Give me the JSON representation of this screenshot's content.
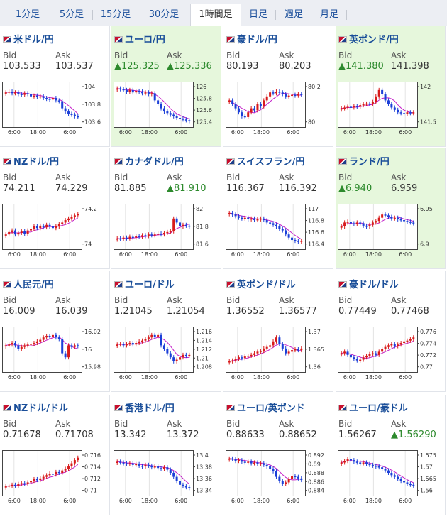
{
  "tabs": [
    "1分足",
    "5分足",
    "15分足",
    "30分足",
    "1時間足",
    "日足",
    "週足",
    "月足"
  ],
  "active_tab": 4,
  "colors": {
    "up": "#d81b1b",
    "down": "#1b3fd8",
    "ma": "#c41ec9",
    "uptext": "#2d8a2d",
    "highlight": "#e6f7dc"
  },
  "labels": {
    "bid": "Bid",
    "ask": "Ask"
  },
  "pairs": [
    {
      "name": "米ドル/円",
      "bid": "103.533",
      "ask": "103.537",
      "bid_up": false,
      "ask_up": false,
      "hl": false,
      "y_ticks": [
        "104",
        "103.8",
        "103.6"
      ],
      "x_ticks": [
        "6:00",
        "18:00",
        "6:00"
      ],
      "flag_icon": "us-jp-flag-icon",
      "series": [
        0.8,
        0.82,
        0.78,
        0.8,
        0.76,
        0.74,
        0.78,
        0.76,
        0.7,
        0.72,
        0.68,
        0.7,
        0.66,
        0.64,
        0.62,
        0.66,
        0.6,
        0.58,
        0.4,
        0.32,
        0.26,
        0.24,
        0.2,
        0.18
      ]
    },
    {
      "name": "ユーロ/円",
      "bid": "▲125.325",
      "ask": "▲125.336",
      "bid_up": true,
      "ask_up": true,
      "hl": true,
      "y_ticks": [
        "126",
        "125.8",
        "125.6",
        "125.4"
      ],
      "x_ticks": [
        "6:00",
        "18:00",
        "6:00"
      ],
      "flag_icon": "eu-jp-flag-icon",
      "series": [
        0.9,
        0.88,
        0.86,
        0.82,
        0.86,
        0.8,
        0.84,
        0.82,
        0.78,
        0.8,
        0.76,
        0.78,
        0.6,
        0.5,
        0.4,
        0.32,
        0.28,
        0.24,
        0.2,
        0.16,
        0.14,
        0.12,
        0.1,
        0.08
      ]
    },
    {
      "name": "豪ドル/円",
      "bid": "80.193",
      "ask": "80.203",
      "bid_up": false,
      "ask_up": false,
      "hl": false,
      "y_ticks": [
        "80.2",
        "80"
      ],
      "x_ticks": [
        "6:00",
        "18:00",
        "6:00"
      ],
      "flag_icon": "au-jp-flag-icon",
      "series": [
        0.6,
        0.5,
        0.4,
        0.3,
        0.2,
        0.18,
        0.3,
        0.4,
        0.35,
        0.5,
        0.45,
        0.6,
        0.7,
        0.8,
        0.78,
        0.82,
        0.8,
        0.76,
        0.7,
        0.72,
        0.74,
        0.72,
        0.76,
        0.74
      ]
    },
    {
      "name": "英ポンド/円",
      "bid": "▲141.380",
      "ask": "141.398",
      "bid_up": true,
      "ask_up": false,
      "hl": true,
      "y_ticks": [
        "142",
        "141.5"
      ],
      "x_ticks": [
        "6:00",
        "18:00",
        "6:00"
      ],
      "flag_icon": "uk-jp-flag-icon",
      "series": [
        0.4,
        0.42,
        0.44,
        0.42,
        0.46,
        0.44,
        0.48,
        0.5,
        0.52,
        0.5,
        0.56,
        0.7,
        0.86,
        0.76,
        0.6,
        0.5,
        0.42,
        0.36,
        0.3,
        0.28,
        0.26,
        0.3,
        0.28,
        0.3
      ]
    },
    {
      "name": "NZドル/円",
      "bid": "74.211",
      "ask": "74.229",
      "bid_up": false,
      "ask_up": false,
      "hl": false,
      "y_ticks": [
        "74.2",
        "74"
      ],
      "x_ticks": [
        "6:00",
        "18:00",
        "6:00"
      ],
      "flag_icon": "nz-jp-flag-icon",
      "series": [
        0.3,
        0.36,
        0.4,
        0.3,
        0.34,
        0.38,
        0.32,
        0.4,
        0.44,
        0.5,
        0.46,
        0.52,
        0.48,
        0.54,
        0.5,
        0.46,
        0.5,
        0.56,
        0.6,
        0.66,
        0.7,
        0.74,
        0.78,
        0.82
      ]
    },
    {
      "name": "カナダドル/円",
      "bid": "81.885",
      "ask": "▲81.910",
      "bid_up": false,
      "ask_up": true,
      "hl": false,
      "y_ticks": [
        "82",
        "81.8",
        "81.6"
      ],
      "x_ticks": [
        "6:00",
        "18:00",
        "6:00"
      ],
      "flag_icon": "ca-jp-flag-icon",
      "series": [
        0.2,
        0.18,
        0.22,
        0.2,
        0.24,
        0.22,
        0.26,
        0.24,
        0.28,
        0.26,
        0.3,
        0.28,
        0.3,
        0.32,
        0.3,
        0.34,
        0.36,
        0.38,
        0.7,
        0.6,
        0.5,
        0.54,
        0.52,
        0.5
      ]
    },
    {
      "name": "スイスフラン/円",
      "bid": "116.367",
      "ask": "116.392",
      "bid_up": false,
      "ask_up": false,
      "hl": false,
      "y_ticks": [
        "117",
        "116.8",
        "116.6",
        "116.4"
      ],
      "x_ticks": [
        "6:00",
        "18:00",
        "6:00"
      ],
      "flag_icon": "ch-jp-flag-icon",
      "series": [
        0.84,
        0.8,
        0.76,
        0.72,
        0.7,
        0.72,
        0.68,
        0.7,
        0.66,
        0.68,
        0.7,
        0.66,
        0.6,
        0.58,
        0.54,
        0.5,
        0.44,
        0.4,
        0.3,
        0.22,
        0.16,
        0.14,
        0.12,
        0.14
      ]
    },
    {
      "name": "ランド/円",
      "bid": "▲6.940",
      "ask": "6.959",
      "bid_up": true,
      "ask_up": false,
      "hl": true,
      "y_ticks": [
        "6.95",
        "6.9"
      ],
      "x_ticks": [
        "6:00",
        "18:00",
        "6:00"
      ],
      "flag_icon": "za-jp-flag-icon",
      "series": [
        0.5,
        0.6,
        0.62,
        0.58,
        0.56,
        0.6,
        0.58,
        0.52,
        0.5,
        0.54,
        0.6,
        0.64,
        0.72,
        0.8,
        0.78,
        0.74,
        0.7,
        0.72,
        0.68,
        0.66,
        0.64,
        0.62,
        0.6,
        0.58
      ]
    },
    {
      "name": "人民元/円",
      "bid": "16.009",
      "ask": "16.039",
      "bid_up": false,
      "ask_up": false,
      "hl": false,
      "y_ticks": [
        "16.02",
        "16",
        "15.98"
      ],
      "x_ticks": [
        "6:00",
        "18:00",
        "6:00"
      ],
      "flag_icon": "cn-jp-flag-icon",
      "series": [
        0.6,
        0.62,
        0.66,
        0.6,
        0.5,
        0.56,
        0.6,
        0.62,
        0.64,
        0.66,
        0.7,
        0.74,
        0.8,
        0.84,
        0.82,
        0.86,
        0.8,
        0.76,
        0.4,
        0.3,
        0.6,
        0.56,
        0.6,
        0.58
      ]
    },
    {
      "name": "ユーロ/ドル",
      "bid": "1.21045",
      "ask": "1.21054",
      "bid_up": false,
      "ask_up": false,
      "hl": false,
      "y_ticks": [
        "1.216",
        "1.214",
        "1.212",
        "1.21",
        "1.208"
      ],
      "x_ticks": [
        "6:00",
        "18:00",
        "6:00"
      ],
      "flag_icon": "eu-us-flag-icon",
      "series": [
        0.62,
        0.64,
        0.6,
        0.64,
        0.66,
        0.62,
        0.66,
        0.7,
        0.72,
        0.76,
        0.8,
        0.86,
        0.82,
        0.86,
        0.6,
        0.5,
        0.4,
        0.3,
        0.2,
        0.24,
        0.3,
        0.36,
        0.34,
        0.36
      ]
    },
    {
      "name": "英ポンド/ドル",
      "bid": "1.36552",
      "ask": "1.36577",
      "bid_up": false,
      "ask_up": false,
      "hl": false,
      "y_ticks": [
        "1.37",
        "1.365",
        "1.36"
      ],
      "x_ticks": [
        "6:00",
        "18:00",
        "6:00"
      ],
      "flag_icon": "uk-us-flag-icon",
      "series": [
        0.2,
        0.22,
        0.26,
        0.3,
        0.28,
        0.32,
        0.34,
        0.36,
        0.4,
        0.44,
        0.46,
        0.52,
        0.56,
        0.6,
        0.7,
        0.8,
        0.64,
        0.52,
        0.4,
        0.44,
        0.48,
        0.5,
        0.48,
        0.52
      ]
    },
    {
      "name": "豪ドル/ドル",
      "bid": "0.77449",
      "ask": "0.77468",
      "bid_up": false,
      "ask_up": false,
      "hl": false,
      "y_ticks": [
        "0.776",
        "0.774",
        "0.772",
        "0.77"
      ],
      "x_ticks": [
        "6:00",
        "18:00",
        "6:00"
      ],
      "flag_icon": "au-us-flag-icon",
      "series": [
        0.4,
        0.44,
        0.36,
        0.3,
        0.26,
        0.22,
        0.24,
        0.3,
        0.34,
        0.38,
        0.4,
        0.36,
        0.44,
        0.5,
        0.56,
        0.6,
        0.64,
        0.58,
        0.62,
        0.66,
        0.7,
        0.72,
        0.76,
        0.8
      ]
    },
    {
      "name": "NZドル/ドル",
      "bid": "0.71678",
      "ask": "0.71708",
      "bid_up": false,
      "ask_up": false,
      "hl": false,
      "y_ticks": [
        "0.716",
        "0.714",
        "0.712",
        "0.71"
      ],
      "x_ticks": [
        "6:00",
        "18:00",
        "6:00"
      ],
      "flag_icon": "nz-us-flag-icon",
      "series": [
        0.16,
        0.18,
        0.2,
        0.18,
        0.22,
        0.24,
        0.22,
        0.26,
        0.3,
        0.34,
        0.32,
        0.36,
        0.4,
        0.44,
        0.48,
        0.46,
        0.52,
        0.5,
        0.56,
        0.6,
        0.66,
        0.74,
        0.82,
        0.88
      ]
    },
    {
      "name": "香港ドル/円",
      "bid": "13.342",
      "ask": "13.372",
      "bid_up": false,
      "ask_up": false,
      "hl": false,
      "y_ticks": [
        "13.4",
        "13.38",
        "13.36",
        "13.34"
      ],
      "x_ticks": [
        "6:00",
        "18:00",
        "6:00"
      ],
      "flag_icon": "hk-jp-flag-icon",
      "series": [
        0.78,
        0.76,
        0.74,
        0.72,
        0.74,
        0.7,
        0.72,
        0.68,
        0.66,
        0.7,
        0.68,
        0.64,
        0.66,
        0.62,
        0.6,
        0.64,
        0.58,
        0.5,
        0.4,
        0.3,
        0.2,
        0.16,
        0.14,
        0.12
      ]
    },
    {
      "name": "ユーロ/英ポンド",
      "bid": "0.88633",
      "ask": "0.88652",
      "bid_up": false,
      "ask_up": false,
      "hl": false,
      "y_ticks": [
        "0.892",
        "0.89",
        "0.888",
        "0.886",
        "0.884"
      ],
      "x_ticks": [
        "6:00",
        "18:00",
        "6:00"
      ],
      "flag_icon": "eu-uk-flag-icon",
      "series": [
        0.86,
        0.84,
        0.8,
        0.82,
        0.78,
        0.76,
        0.78,
        0.74,
        0.76,
        0.72,
        0.74,
        0.7,
        0.66,
        0.6,
        0.54,
        0.4,
        0.3,
        0.22,
        0.26,
        0.34,
        0.42,
        0.4,
        0.36,
        0.32
      ]
    },
    {
      "name": "ユーロ/豪ドル",
      "bid": "1.56267",
      "ask": "▲1.56290",
      "bid_up": false,
      "ask_up": true,
      "hl": false,
      "y_ticks": [
        "1.575",
        "1.57",
        "1.565",
        "1.56"
      ],
      "x_ticks": [
        "6:00",
        "18:00",
        "6:00"
      ],
      "flag_icon": "eu-au-flag-icon",
      "series": [
        0.76,
        0.8,
        0.84,
        0.82,
        0.78,
        0.76,
        0.74,
        0.76,
        0.72,
        0.7,
        0.68,
        0.66,
        0.64,
        0.6,
        0.56,
        0.5,
        0.44,
        0.4,
        0.34,
        0.3,
        0.26,
        0.22,
        0.2,
        0.18
      ]
    }
  ]
}
